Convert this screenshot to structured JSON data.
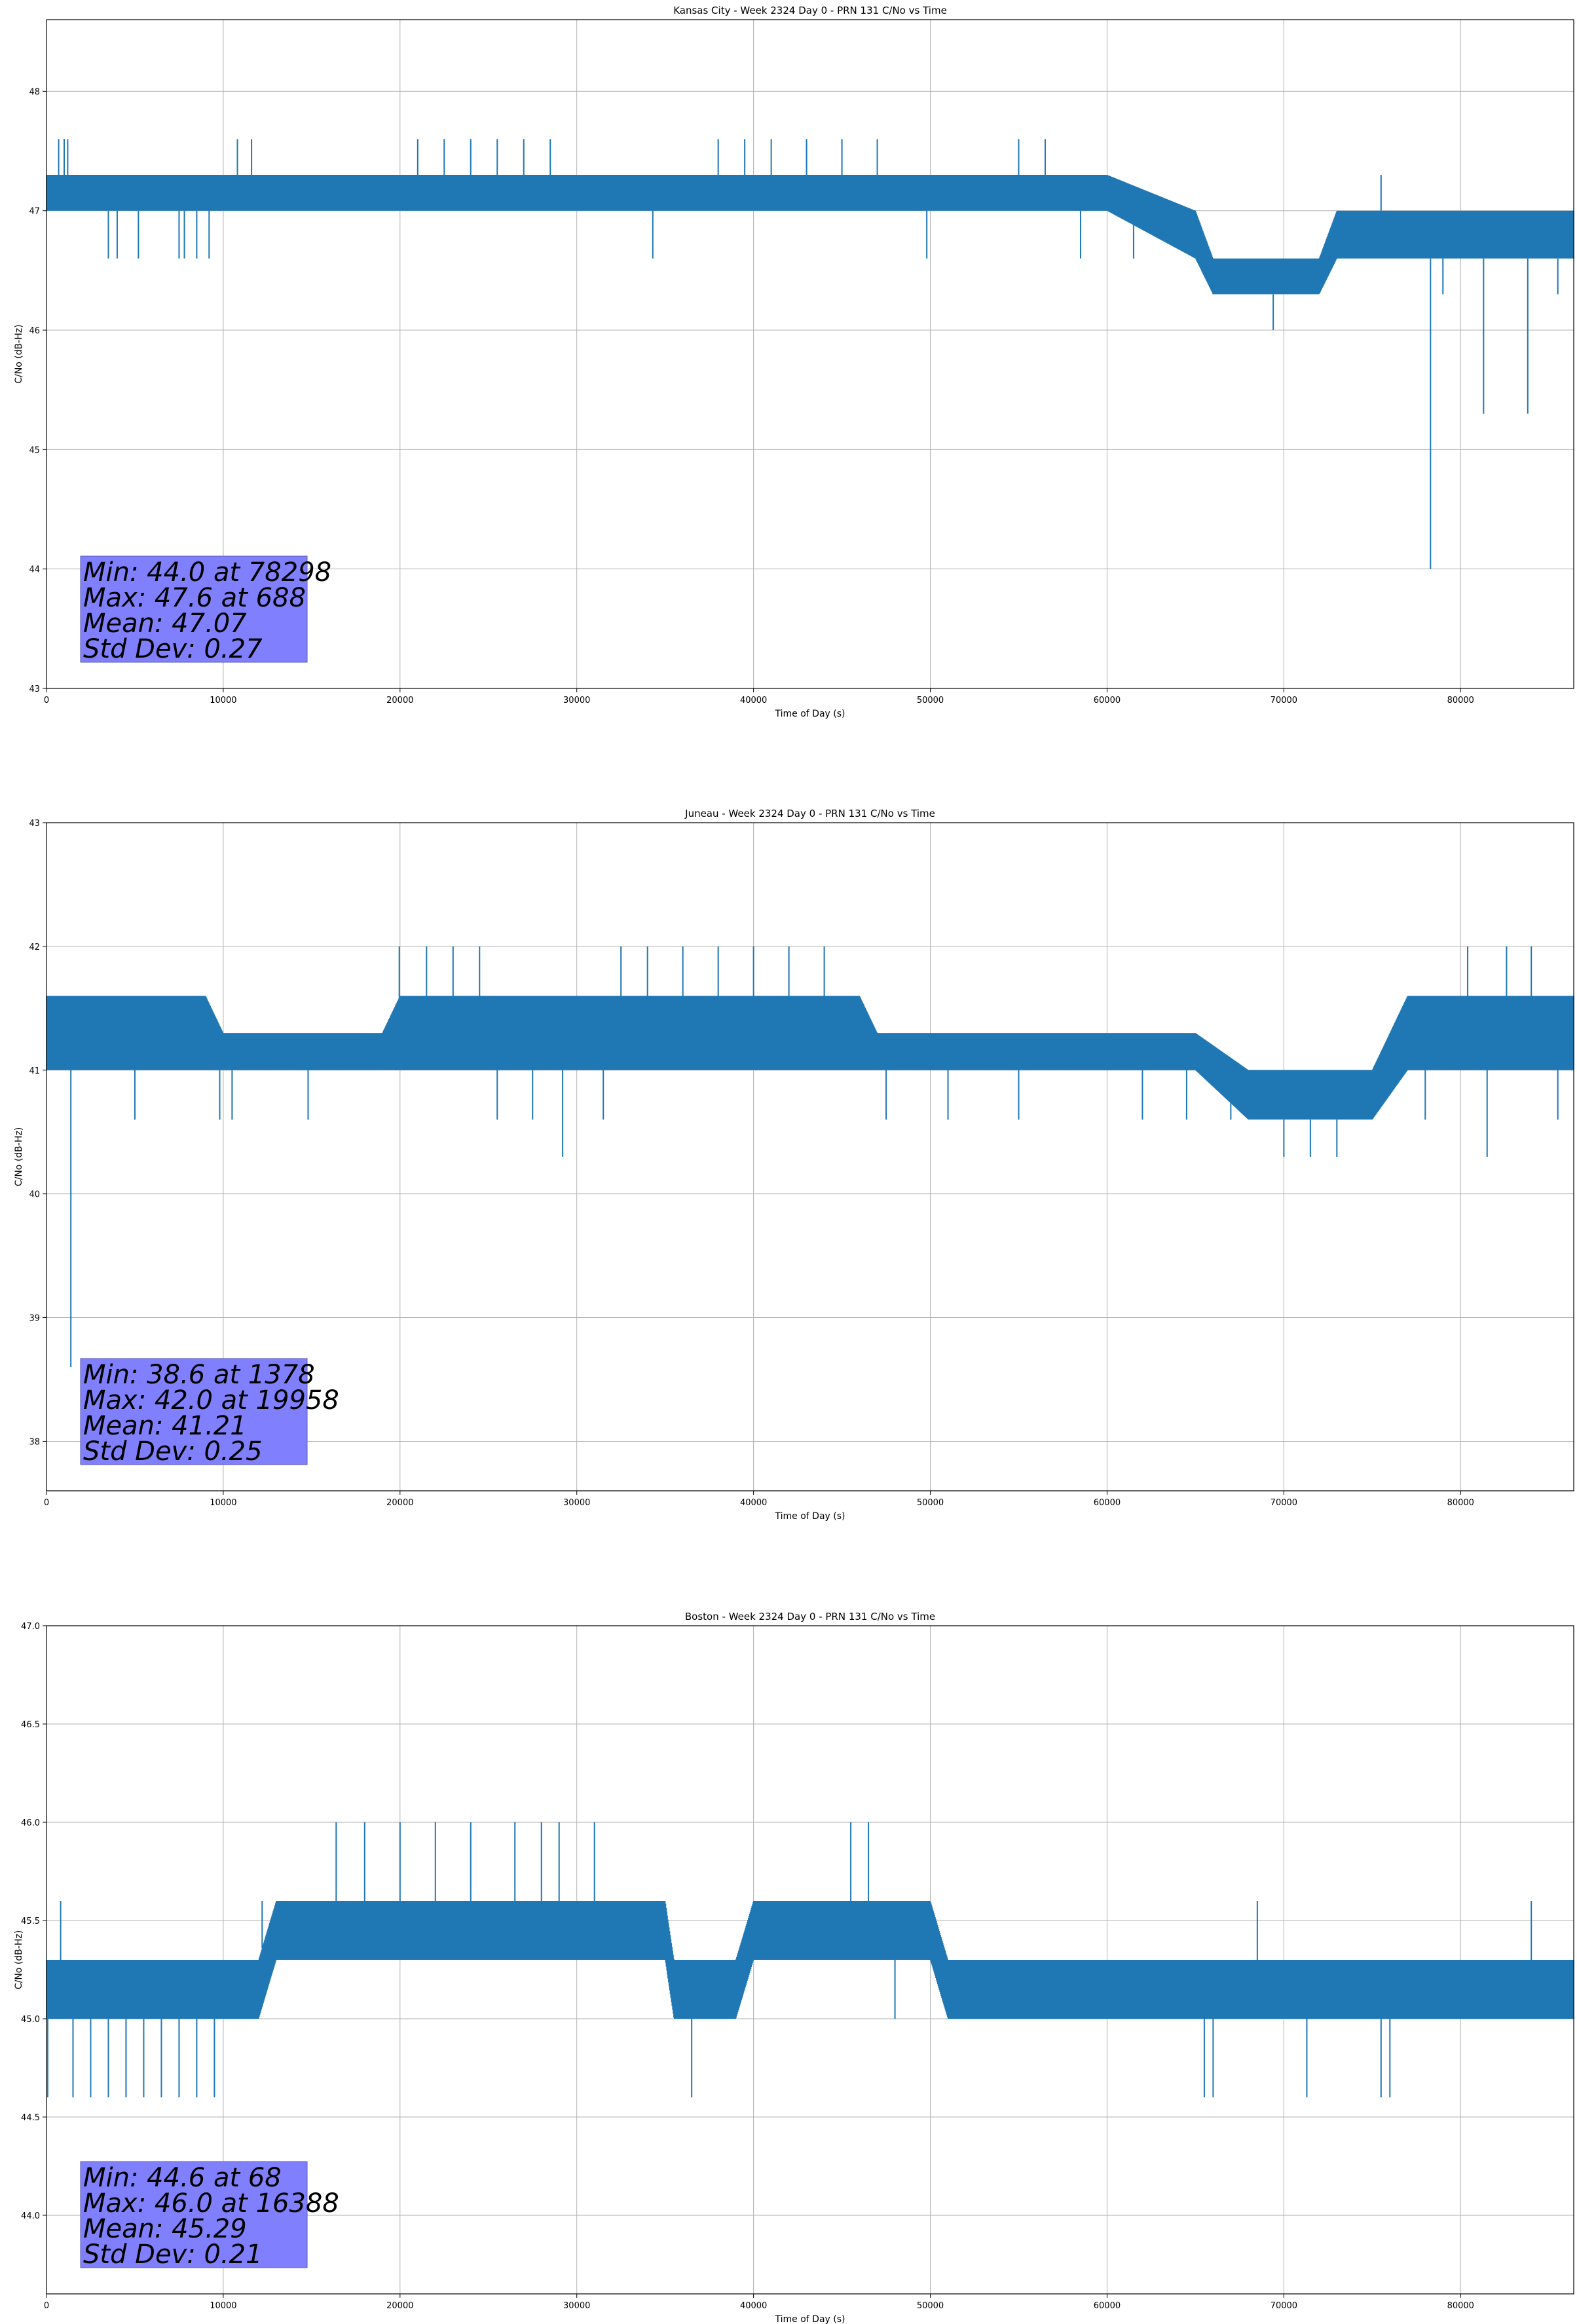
{
  "chart_data": [
    {
      "type": "line",
      "title": "Kansas City - Week 2324 Day 0 - PRN 131 C/No vs Time",
      "xlabel": "Time of Day (s)",
      "ylabel": "C/No (dB-Hz)",
      "xlim": [
        0,
        86400
      ],
      "ylim": [
        43,
        48.6
      ],
      "xticks": [
        0,
        10000,
        20000,
        30000,
        40000,
        50000,
        60000,
        70000,
        80000
      ],
      "yticks": [
        "43",
        "44",
        "45",
        "46",
        "47",
        "48"
      ],
      "grid": true,
      "color": "#1f77b4",
      "stats": [
        "Min: 44.0 at 78298",
        "Max: 47.6 at 688",
        "Mean: 47.07",
        "Std Dev: 0.27"
      ],
      "series_profile": {
        "x": [
          0,
          10000,
          20000,
          30000,
          40000,
          50000,
          60000,
          65000,
          66000,
          72000,
          73000,
          80000,
          86400
        ],
        "band_low": [
          47.0,
          47.0,
          47.0,
          47.0,
          47.0,
          47.0,
          47.0,
          46.6,
          46.3,
          46.3,
          46.6,
          46.6,
          46.6
        ],
        "band_high": [
          47.3,
          47.3,
          47.3,
          47.3,
          47.3,
          47.3,
          47.3,
          47.0,
          46.6,
          46.6,
          47.0,
          47.0,
          47.0
        ]
      },
      "events": [
        {
          "x": 688,
          "y": 47.6
        },
        {
          "x": 1000,
          "y": 47.6
        },
        {
          "x": 1200,
          "y": 47.6
        },
        {
          "x": 3500,
          "y": 46.6
        },
        {
          "x": 4000,
          "y": 46.6
        },
        {
          "x": 5200,
          "y": 46.6
        },
        {
          "x": 7500,
          "y": 46.6
        },
        {
          "x": 7800,
          "y": 46.6
        },
        {
          "x": 8500,
          "y": 46.6
        },
        {
          "x": 9200,
          "y": 46.6
        },
        {
          "x": 10800,
          "y": 47.6
        },
        {
          "x": 11600,
          "y": 47.6
        },
        {
          "x": 21000,
          "y": 47.6
        },
        {
          "x": 22500,
          "y": 47.6
        },
        {
          "x": 24000,
          "y": 47.6
        },
        {
          "x": 25500,
          "y": 47.6
        },
        {
          "x": 27000,
          "y": 47.6
        },
        {
          "x": 28500,
          "y": 47.6
        },
        {
          "x": 34300,
          "y": 46.6
        },
        {
          "x": 38000,
          "y": 47.6
        },
        {
          "x": 39500,
          "y": 47.6
        },
        {
          "x": 41000,
          "y": 47.6
        },
        {
          "x": 43000,
          "y": 47.6
        },
        {
          "x": 45000,
          "y": 47.6
        },
        {
          "x": 47000,
          "y": 47.6
        },
        {
          "x": 49800,
          "y": 46.6
        },
        {
          "x": 55000,
          "y": 47.6
        },
        {
          "x": 56500,
          "y": 47.6
        },
        {
          "x": 58500,
          "y": 46.6
        },
        {
          "x": 61500,
          "y": 46.6
        },
        {
          "x": 66000,
          "y": 46.3
        },
        {
          "x": 69400,
          "y": 46.0
        },
        {
          "x": 75500,
          "y": 47.3
        },
        {
          "x": 78298,
          "y": 44.0
        },
        {
          "x": 79000,
          "y": 46.3
        },
        {
          "x": 81300,
          "y": 45.3
        },
        {
          "x": 83800,
          "y": 45.3
        },
        {
          "x": 85500,
          "y": 46.3
        }
      ]
    },
    {
      "type": "line",
      "title": "Juneau - Week 2324 Day 0 - PRN 131 C/No vs Time",
      "xlabel": "Time of Day (s)",
      "ylabel": "C/No (dB-Hz)",
      "xlim": [
        0,
        86400
      ],
      "ylim": [
        37.6,
        43
      ],
      "xticks": [
        0,
        10000,
        20000,
        30000,
        40000,
        50000,
        60000,
        70000,
        80000
      ],
      "yticks": [
        "38",
        "39",
        "40",
        "41",
        "42",
        "43"
      ],
      "grid": true,
      "color": "#1f77b4",
      "stats": [
        "Min: 38.6 at 1378",
        "Max: 42.0 at 19958",
        "Mean: 41.21",
        "Std Dev: 0.25"
      ],
      "series_profile": {
        "x": [
          0,
          9000,
          10000,
          19000,
          20000,
          31000,
          32000,
          46000,
          47000,
          64000,
          65000,
          68000,
          69000,
          75000,
          77000,
          86400
        ],
        "band_low": [
          41.0,
          41.0,
          41.0,
          41.0,
          41.0,
          41.0,
          41.0,
          41.0,
          41.0,
          41.0,
          41.0,
          40.6,
          40.6,
          40.6,
          41.0,
          41.0
        ],
        "band_high": [
          41.6,
          41.6,
          41.3,
          41.3,
          41.6,
          41.6,
          41.6,
          41.6,
          41.3,
          41.3,
          41.3,
          41.0,
          41.0,
          41.0,
          41.6,
          41.6
        ]
      },
      "events": [
        {
          "x": 1378,
          "y": 38.6
        },
        {
          "x": 5000,
          "y": 40.6
        },
        {
          "x": 9800,
          "y": 40.6
        },
        {
          "x": 10500,
          "y": 40.6
        },
        {
          "x": 14800,
          "y": 40.6
        },
        {
          "x": 19958,
          "y": 42.0
        },
        {
          "x": 21500,
          "y": 42.0
        },
        {
          "x": 23000,
          "y": 42.0
        },
        {
          "x": 24500,
          "y": 42.0
        },
        {
          "x": 25500,
          "y": 40.6
        },
        {
          "x": 27500,
          "y": 40.6
        },
        {
          "x": 29200,
          "y": 40.3
        },
        {
          "x": 31500,
          "y": 40.6
        },
        {
          "x": 32500,
          "y": 42.0
        },
        {
          "x": 34000,
          "y": 42.0
        },
        {
          "x": 36000,
          "y": 42.0
        },
        {
          "x": 38000,
          "y": 42.0
        },
        {
          "x": 40000,
          "y": 42.0
        },
        {
          "x": 42000,
          "y": 42.0
        },
        {
          "x": 44000,
          "y": 42.0
        },
        {
          "x": 47500,
          "y": 40.6
        },
        {
          "x": 51000,
          "y": 40.6
        },
        {
          "x": 55000,
          "y": 40.6
        },
        {
          "x": 62000,
          "y": 40.6
        },
        {
          "x": 64500,
          "y": 40.6
        },
        {
          "x": 67000,
          "y": 40.6
        },
        {
          "x": 70000,
          "y": 40.3
        },
        {
          "x": 71500,
          "y": 40.3
        },
        {
          "x": 73000,
          "y": 40.3
        },
        {
          "x": 78000,
          "y": 40.6
        },
        {
          "x": 80400,
          "y": 42.0
        },
        {
          "x": 81500,
          "y": 40.3
        },
        {
          "x": 82600,
          "y": 42.0
        },
        {
          "x": 84000,
          "y": 42.0
        },
        {
          "x": 85500,
          "y": 40.6
        }
      ]
    },
    {
      "type": "line",
      "title": "Boston - Week 2324 Day 0 - PRN 131 C/No vs Time",
      "xlabel": "Time of Day (s)",
      "ylabel": "C/No (dB-Hz)",
      "xlim": [
        0,
        86400
      ],
      "ylim": [
        43.6,
        47.0
      ],
      "xticks": [
        0,
        10000,
        20000,
        30000,
        40000,
        50000,
        60000,
        70000,
        80000
      ],
      "yticks": [
        "44.0",
        "44.5",
        "45.0",
        "45.5",
        "46.0",
        "46.5",
        "47.0"
      ],
      "grid": true,
      "color": "#1f77b4",
      "stats": [
        "Min: 44.6 at 68",
        "Max: 46.0 at 16388",
        "Mean: 45.29",
        "Std Dev: 0.21"
      ],
      "series_profile": {
        "x": [
          0,
          10000,
          12000,
          13000,
          35000,
          35500,
          39000,
          40000,
          50000,
          51000,
          86400
        ],
        "band_low": [
          45.0,
          45.0,
          45.0,
          45.3,
          45.3,
          45.0,
          45.0,
          45.3,
          45.3,
          45.0,
          45.0
        ],
        "band_high": [
          45.3,
          45.3,
          45.3,
          45.6,
          45.6,
          45.3,
          45.3,
          45.6,
          45.6,
          45.3,
          45.3
        ]
      },
      "events": [
        {
          "x": 68,
          "y": 44.6
        },
        {
          "x": 800,
          "y": 45.6
        },
        {
          "x": 1500,
          "y": 44.6
        },
        {
          "x": 2500,
          "y": 44.6
        },
        {
          "x": 3500,
          "y": 44.6
        },
        {
          "x": 4500,
          "y": 44.6
        },
        {
          "x": 5500,
          "y": 44.6
        },
        {
          "x": 6500,
          "y": 44.6
        },
        {
          "x": 7500,
          "y": 44.6
        },
        {
          "x": 8500,
          "y": 44.6
        },
        {
          "x": 9500,
          "y": 44.6
        },
        {
          "x": 12200,
          "y": 45.6
        },
        {
          "x": 16388,
          "y": 46.0
        },
        {
          "x": 18000,
          "y": 46.0
        },
        {
          "x": 20000,
          "y": 46.0
        },
        {
          "x": 22000,
          "y": 46.0
        },
        {
          "x": 24000,
          "y": 46.0
        },
        {
          "x": 26500,
          "y": 46.0
        },
        {
          "x": 28000,
          "y": 46.0
        },
        {
          "x": 29000,
          "y": 46.0
        },
        {
          "x": 31000,
          "y": 46.0
        },
        {
          "x": 36500,
          "y": 44.6
        },
        {
          "x": 45500,
          "y": 46.0
        },
        {
          "x": 46500,
          "y": 46.0
        },
        {
          "x": 48000,
          "y": 45.0
        },
        {
          "x": 65500,
          "y": 44.6
        },
        {
          "x": 66000,
          "y": 44.6
        },
        {
          "x": 68500,
          "y": 45.6
        },
        {
          "x": 71300,
          "y": 44.6
        },
        {
          "x": 75500,
          "y": 44.6
        },
        {
          "x": 76000,
          "y": 44.6
        },
        {
          "x": 84000,
          "y": 45.6
        }
      ]
    }
  ]
}
